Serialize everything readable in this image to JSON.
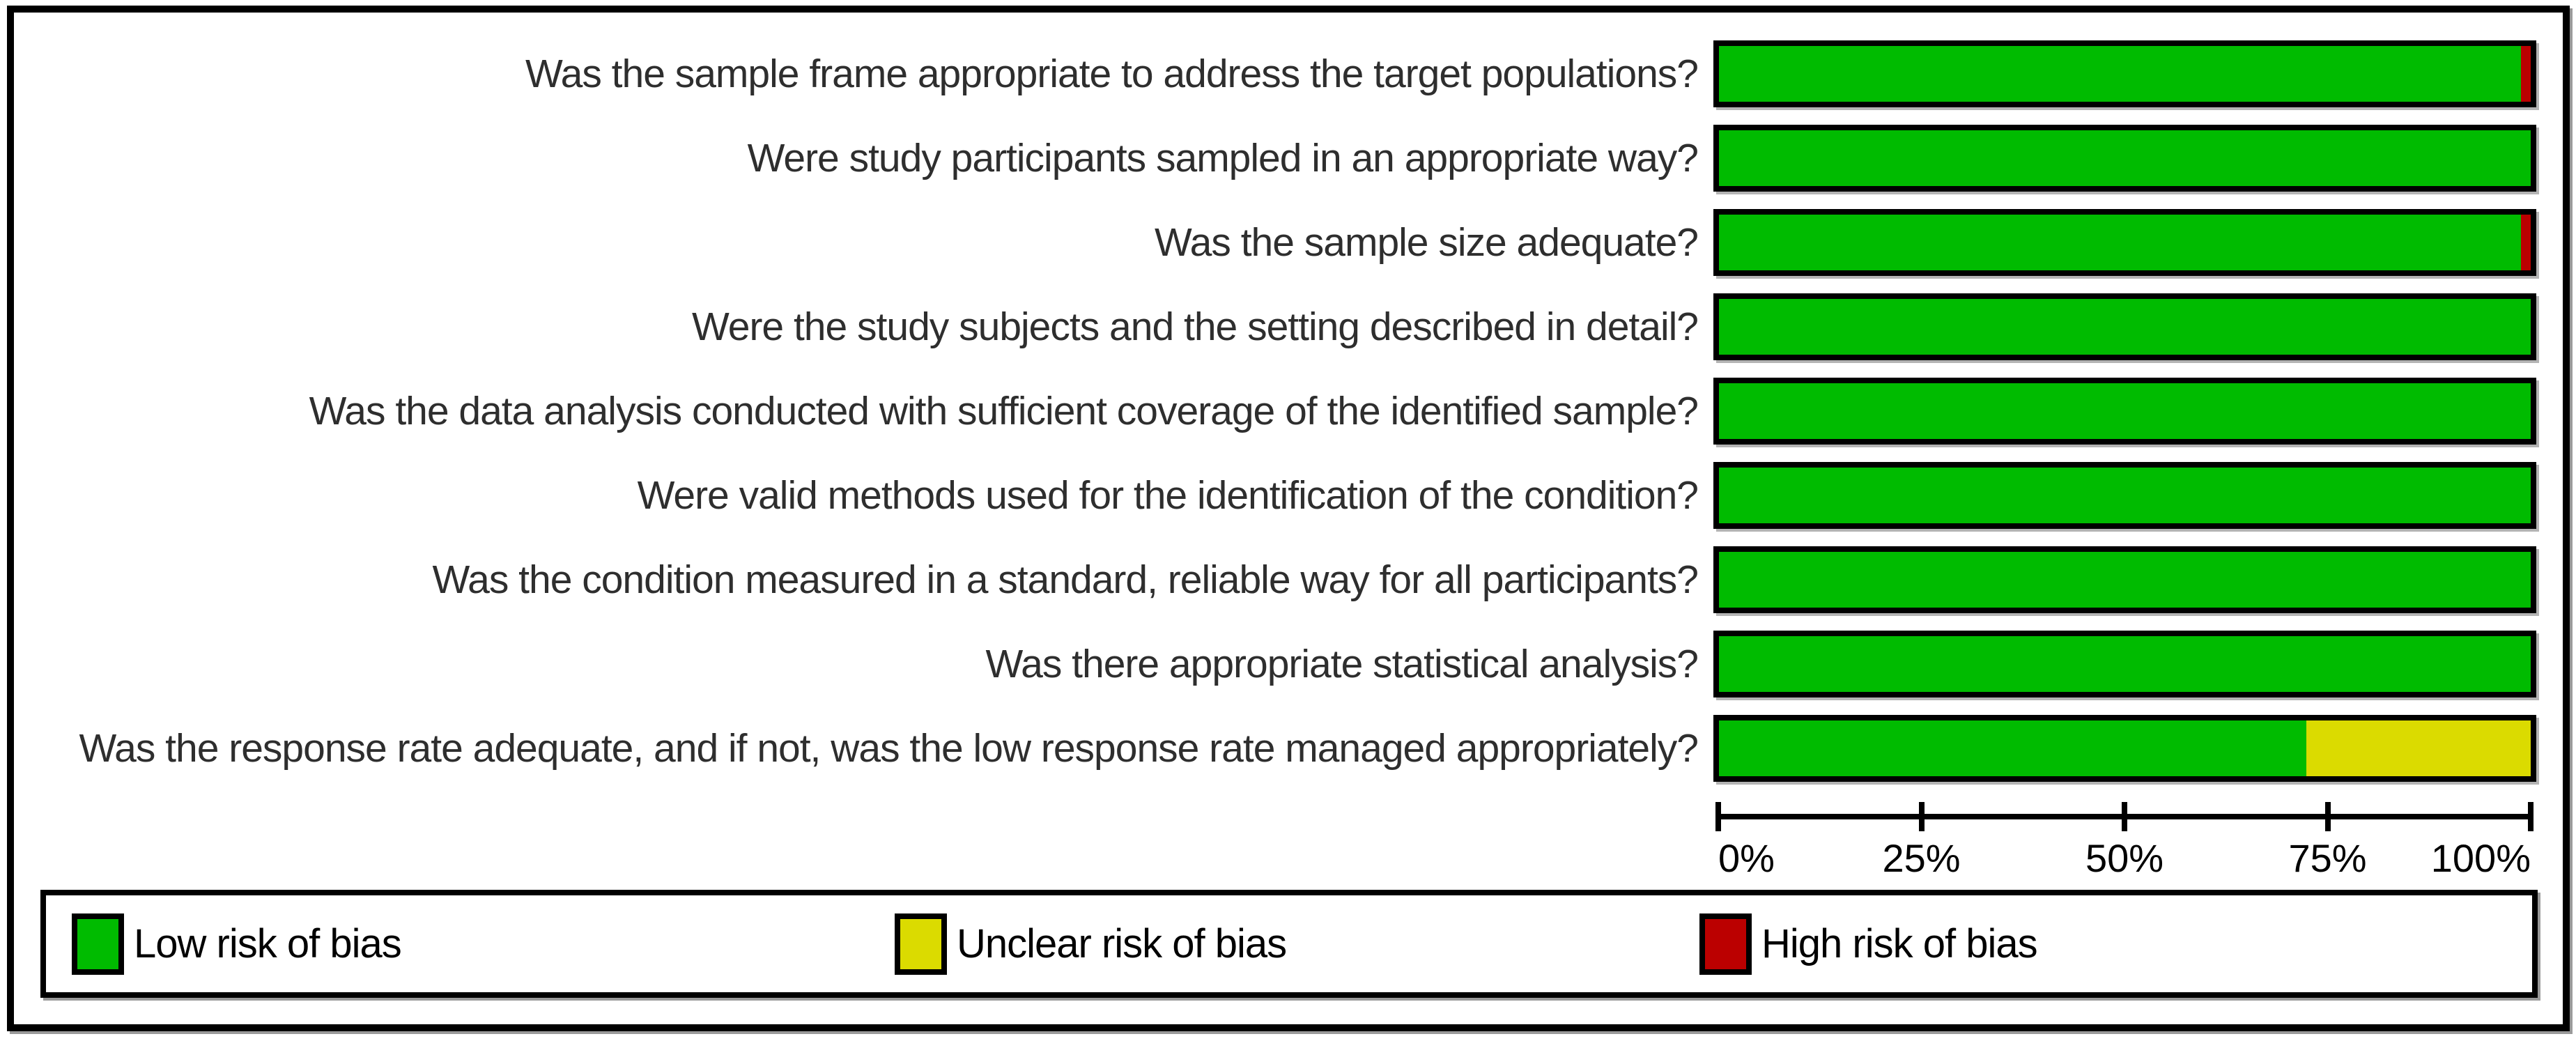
{
  "chart_data": {
    "type": "bar",
    "orientation": "horizontal",
    "stacked": true,
    "unit": "percent",
    "title": "",
    "categories": [
      "Was the sample frame appropriate to address the target populations?",
      "Were study participants sampled in an appropriate way?",
      "Was the sample size adequate?",
      "Were the study subjects and the setting described in detail?",
      "Was the data analysis conducted with sufficient coverage of the identified sample?",
      "Were valid methods used for the identification of the condition?",
      "Was the condition measured in a standard, reliable way for all participants?",
      "Was there appropriate statistical analysis?",
      "Was the response rate adequate, and if not, was the low response rate managed appropriately?"
    ],
    "series": [
      {
        "name": "Low risk of bias",
        "color": "#00BB00",
        "values": [
          98.8,
          100,
          98.8,
          100,
          100,
          100,
          100,
          100,
          72.4
        ]
      },
      {
        "name": "Unclear risk of bias",
        "color": "#DBDB00",
        "values": [
          0,
          0,
          0,
          0,
          0,
          0,
          0,
          0,
          27.6
        ]
      },
      {
        "name": "High risk of bias",
        "color": "#BB0000",
        "values": [
          1.2,
          0,
          1.2,
          0,
          0,
          0,
          0,
          0,
          0
        ]
      }
    ],
    "x_axis": {
      "range": [
        0,
        100
      ],
      "ticks": [
        "0%",
        "25%",
        "50%%",
        "75%",
        "100%"
      ],
      "tick_labels": [
        "0%",
        "25%",
        "50%",
        "75%",
        "100%"
      ]
    },
    "legend_position": "bottom",
    "grid": false
  },
  "colors": {
    "bar_border": "#000000",
    "frame_border": "#000000",
    "question_text": "#2e2e2e",
    "axis_text": "#000000"
  }
}
